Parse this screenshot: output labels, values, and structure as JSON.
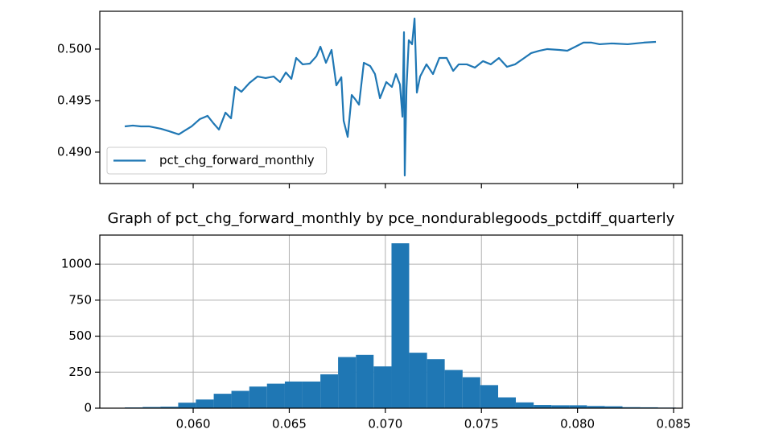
{
  "chart_data": [
    {
      "type": "line",
      "x": [
        0.05644,
        0.05686,
        0.05728,
        0.0577,
        0.05832,
        0.05874,
        0.05925,
        0.05958,
        0.05992,
        0.06034,
        0.06075,
        0.06105,
        0.06134,
        0.06168,
        0.06197,
        0.06218,
        0.06251,
        0.06293,
        0.06335,
        0.06377,
        0.06419,
        0.06452,
        0.06482,
        0.06511,
        0.06536,
        0.0657,
        0.06607,
        0.06641,
        0.06662,
        0.06691,
        0.0672,
        0.06745,
        0.06771,
        0.06783,
        0.06804,
        0.06825,
        0.06842,
        0.06863,
        0.06888,
        0.06921,
        0.06946,
        0.06972,
        0.07005,
        0.07034,
        0.07055,
        0.07076,
        0.07089,
        0.07097,
        0.07101,
        0.0711,
        0.07122,
        0.07139,
        0.07152,
        0.07164,
        0.07181,
        0.07214,
        0.07248,
        0.07281,
        0.07319,
        0.07353,
        0.07382,
        0.07424,
        0.07466,
        0.07508,
        0.07549,
        0.07591,
        0.07633,
        0.07675,
        0.07717,
        0.07759,
        0.07801,
        0.07843,
        0.07905,
        0.07947,
        0.07989,
        0.08031,
        0.08073,
        0.08115,
        0.08178,
        0.08261,
        0.08345,
        0.08408
      ],
      "series": [
        {
          "name": "pct_chg_forward_monthly",
          "color": "#1f77b4",
          "values": [
            0.4925,
            0.49258,
            0.4925,
            0.4925,
            0.49227,
            0.49203,
            0.49172,
            0.49211,
            0.4925,
            0.4932,
            0.49352,
            0.49281,
            0.49219,
            0.49383,
            0.49328,
            0.49633,
            0.49586,
            0.49672,
            0.49734,
            0.49719,
            0.49734,
            0.4968,
            0.49773,
            0.49711,
            0.49914,
            0.49852,
            0.49859,
            0.4993,
            0.50023,
            0.49867,
            0.49992,
            0.49648,
            0.49727,
            0.49305,
            0.49148,
            0.49555,
            0.49516,
            0.49461,
            0.49867,
            0.49836,
            0.49758,
            0.49523,
            0.4968,
            0.49633,
            0.49758,
            0.49656,
            0.49344,
            0.50164,
            0.48773,
            0.49617,
            0.50086,
            0.50047,
            0.50297,
            0.49578,
            0.49734,
            0.49852,
            0.49758,
            0.49914,
            0.49914,
            0.49789,
            0.49852,
            0.49852,
            0.4982,
            0.49883,
            0.49852,
            0.49914,
            0.49828,
            0.49852,
            0.49906,
            0.49961,
            0.49984,
            0.5,
            0.49992,
            0.49984,
            0.50023,
            0.50063,
            0.50063,
            0.50047,
            0.50055,
            0.50047,
            0.50063,
            0.5007
          ]
        }
      ],
      "xlim": [
        0.05514,
        0.08546
      ],
      "xticks": [
        0.06,
        0.065,
        0.07,
        0.075,
        0.08,
        0.085
      ],
      "ylim": [
        0.48695,
        0.50367
      ],
      "yticks": [
        {
          "value": 0.49,
          "label": "0.490"
        },
        {
          "value": 0.495,
          "label": "0.495"
        },
        {
          "value": 0.5,
          "label": "0.500"
        }
      ],
      "legend": "lower left",
      "grid": false
    },
    {
      "type": "histogram",
      "title": "Graph of pct_chg_forward_monthly by pce_nondurablegoods_pctdiff_quarterly",
      "bins": [
        0.05644,
        0.05737,
        0.05829,
        0.05922,
        0.06014,
        0.06107,
        0.06199,
        0.06292,
        0.06384,
        0.06477,
        0.06569,
        0.06662,
        0.06754,
        0.06847,
        0.06939,
        0.07032,
        0.07124,
        0.07217,
        0.07309,
        0.07402,
        0.07494,
        0.07587,
        0.07679,
        0.07772,
        0.07864,
        0.07957,
        0.08049,
        0.08142,
        0.08234,
        0.08327,
        0.08419,
        0.08512
      ],
      "values": [
        5,
        8,
        10,
        38,
        60,
        100,
        120,
        150,
        170,
        185,
        185,
        235,
        355,
        370,
        290,
        1145,
        385,
        340,
        265,
        215,
        160,
        75,
        40,
        22,
        20,
        20,
        15,
        13,
        7,
        6,
        4
      ],
      "color": "#1f77b4",
      "xlim": [
        0.05514,
        0.08546
      ],
      "xticks": [
        {
          "value": 0.06,
          "label": "0.060"
        },
        {
          "value": 0.065,
          "label": "0.065"
        },
        {
          "value": 0.07,
          "label": "0.070"
        },
        {
          "value": 0.075,
          "label": "0.075"
        },
        {
          "value": 0.08,
          "label": "0.080"
        },
        {
          "value": 0.085,
          "label": "0.085"
        }
      ],
      "ylim": [
        0,
        1202
      ],
      "yticks": [
        0,
        250,
        500,
        750,
        1000
      ],
      "grid": true
    }
  ]
}
